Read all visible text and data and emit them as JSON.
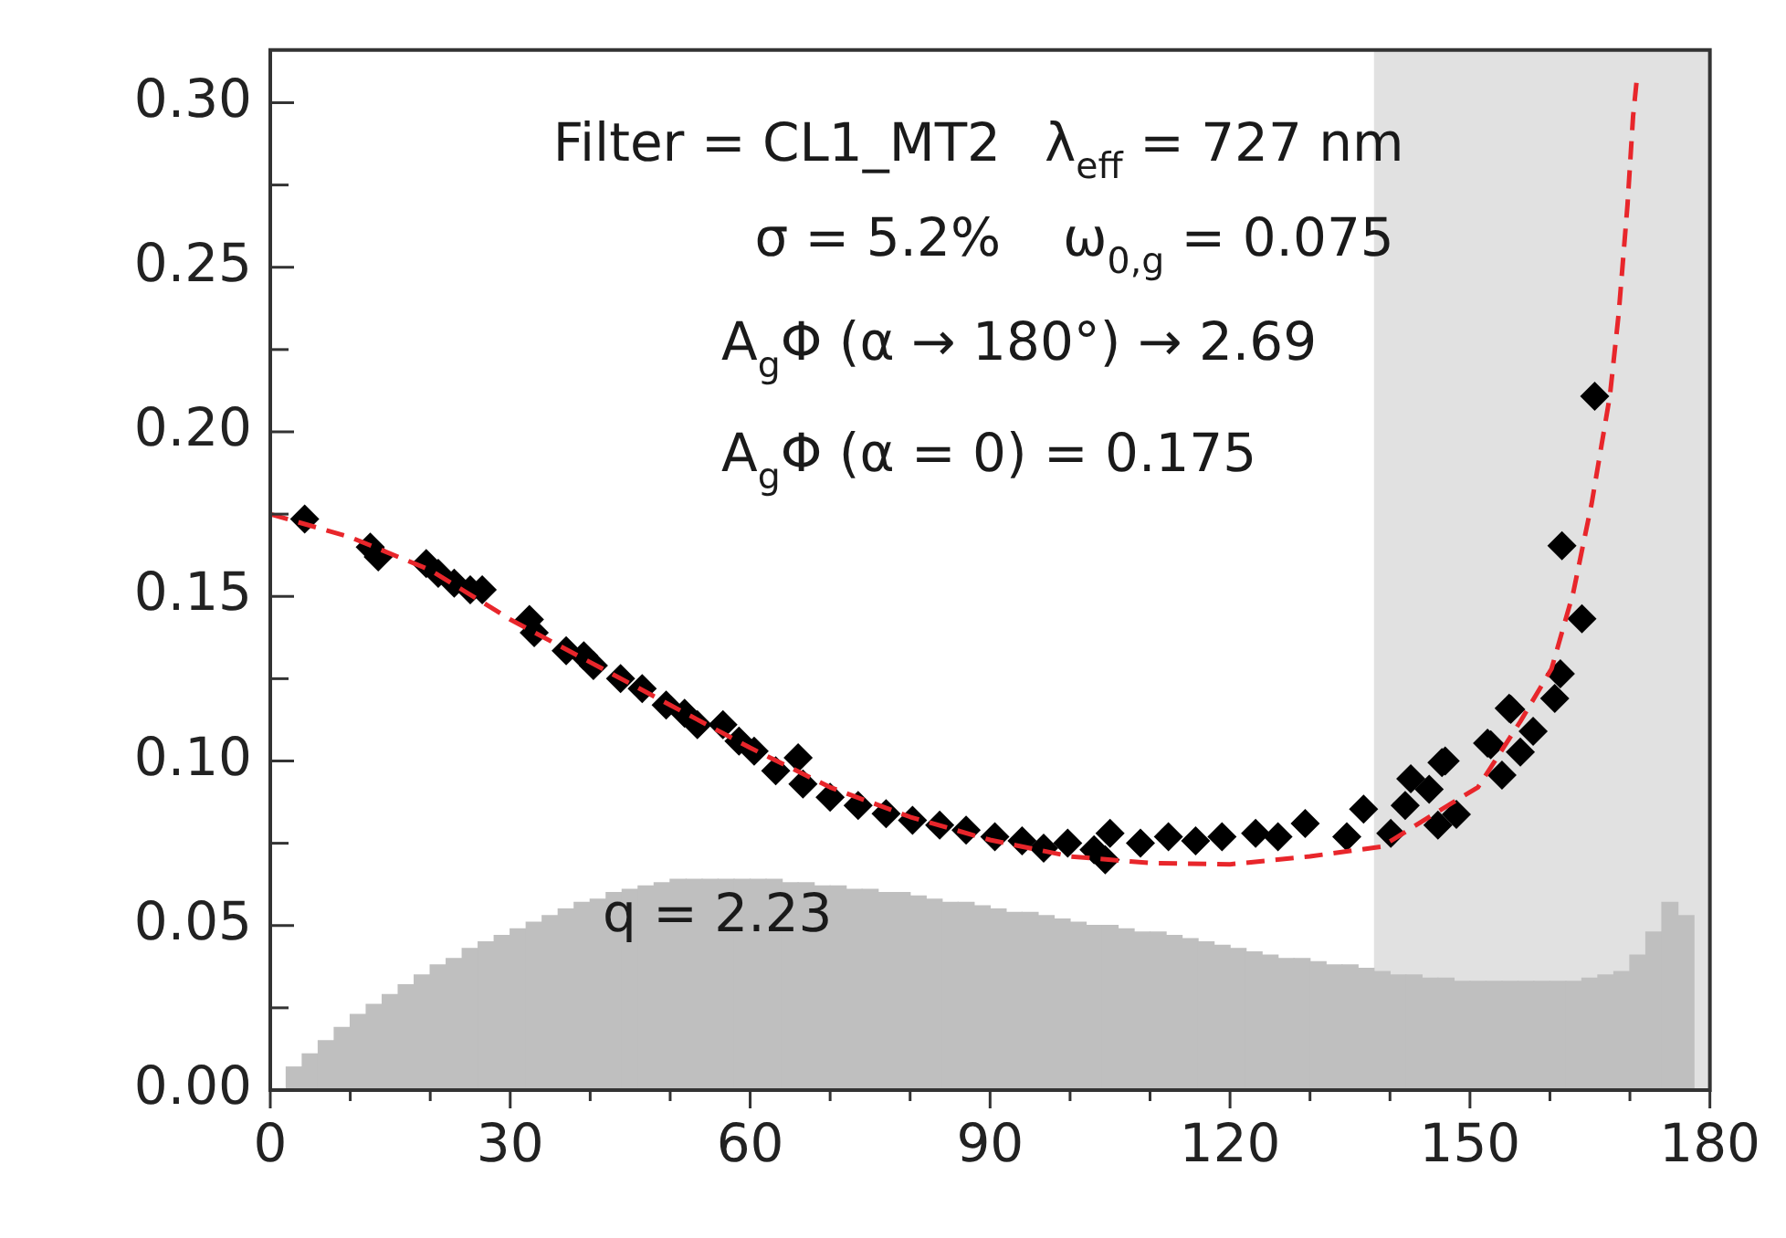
{
  "chart_data": {
    "type": "scatter",
    "annotations": [
      "Filter = CL1_MT2",
      "λ$_{eff}$ = 727 nm",
      "σ = 5.2%",
      "ω$_{0,g}$ = 0.075",
      "A$_{g}$Φ (α → 180°) → 2.69",
      "A$_{g}$Φ (α = 0) = 0.175",
      "q = 2.23"
    ],
    "xlim": [
      0,
      180
    ],
    "ylim": [
      0,
      0.316
    ],
    "xticks": [
      0,
      {
        "value": 10,
        "label": null
      },
      {
        "value": 20,
        "label": null
      },
      30,
      {
        "value": 40,
        "label": null
      },
      {
        "value": 50,
        "label": null
      },
      60,
      {
        "value": 70,
        "label": null
      },
      {
        "value": 80,
        "label": null
      },
      90,
      {
        "value": 100,
        "label": null
      },
      {
        "value": 110,
        "label": null
      },
      120,
      {
        "value": 130,
        "label": null
      },
      {
        "value": 140,
        "label": null
      },
      150,
      {
        "value": 160,
        "label": null
      },
      {
        "value": 170,
        "label": null
      },
      180
    ],
    "yticks": [
      {
        "value": 0,
        "label": "0.00"
      },
      {
        "value": 0.025,
        "label": null
      },
      {
        "value": 0.05,
        "label": "0.05"
      },
      {
        "value": 0.075,
        "label": null
      },
      {
        "value": 0.1,
        "label": "0.10"
      },
      {
        "value": 0.125,
        "label": null
      },
      {
        "value": 0.15,
        "label": "0.15"
      },
      {
        "value": 0.175,
        "label": null
      },
      {
        "value": 0.2,
        "label": "0.20"
      },
      {
        "value": 0.225,
        "label": null
      },
      {
        "value": 0.25,
        "label": "0.25"
      },
      {
        "value": 0.275,
        "label": null
      },
      {
        "value": 0.3,
        "label": "0.30"
      }
    ],
    "grid": false,
    "legend": false,
    "bands": [
      {
        "axis": "x",
        "from": 138,
        "to": 180,
        "color": "#adadad"
      }
    ],
    "series": [
      {
        "type": "histogram",
        "color": "#bfbfbf",
        "bins": [
          2,
          4,
          6,
          8,
          10,
          12,
          14,
          16,
          18,
          20,
          22,
          24,
          26,
          28,
          30,
          32,
          34,
          36,
          38,
          40,
          42,
          44,
          46,
          48,
          50,
          52,
          54,
          56,
          58,
          60,
          62,
          64,
          66,
          68,
          70,
          72,
          74,
          76,
          78,
          80,
          82,
          84,
          86,
          88,
          90,
          92,
          94,
          96,
          98,
          100,
          102,
          104,
          106,
          108,
          110,
          112,
          114,
          116,
          118,
          120,
          122,
          124,
          126,
          128,
          130,
          132,
          134,
          136,
          138,
          140,
          142,
          144,
          146,
          148,
          150,
          152,
          154,
          156,
          158,
          160,
          162,
          164,
          166,
          168,
          170,
          172,
          174,
          176,
          178
        ],
        "values": [
          0.007,
          0.011,
          0.015,
          0.019,
          0.023,
          0.026,
          0.029,
          0.032,
          0.035,
          0.038,
          0.04,
          0.043,
          0.045,
          0.047,
          0.049,
          0.051,
          0.053,
          0.055,
          0.057,
          0.058,
          0.06,
          0.061,
          0.062,
          0.063,
          0.064,
          0.064,
          0.064,
          0.064,
          0.064,
          0.064,
          0.064,
          0.063,
          0.063,
          0.062,
          0.062,
          0.061,
          0.061,
          0.06,
          0.06,
          0.059,
          0.058,
          0.057,
          0.057,
          0.056,
          0.055,
          0.054,
          0.054,
          0.053,
          0.052,
          0.051,
          0.05,
          0.05,
          0.049,
          0.048,
          0.048,
          0.047,
          0.046,
          0.045,
          0.044,
          0.043,
          0.042,
          0.041,
          0.04,
          0.04,
          0.039,
          0.038,
          0.038,
          0.037,
          0.036,
          0.035,
          0.035,
          0.034,
          0.034,
          0.033,
          0.033,
          0.033,
          0.033,
          0.033,
          0.033,
          0.033,
          0.033,
          0.034,
          0.035,
          0.036,
          0.041,
          0.048,
          0.057,
          0.053
        ]
      },
      {
        "type": "scatter",
        "color": "#000000",
        "marker": "diamond",
        "x": [
          4.3,
          12.5,
          13.5,
          19.5,
          21,
          23,
          25,
          26.5,
          32.4,
          33,
          37,
          39.2,
          40.4,
          43.8,
          46.5,
          49.5,
          51.8,
          53.4,
          56.6,
          58.6,
          60.5,
          66,
          63.2,
          66.6,
          70,
          73.5,
          77,
          80.3,
          83.7,
          87,
          90.6,
          94,
          96.7,
          99.7,
          103,
          105,
          104.4,
          108.8,
          112.3,
          115.7,
          119,
          123.2,
          126,
          129.4,
          136.7,
          134.6,
          140.1,
          142.6,
          141.9,
          144.9,
          146.9,
          146,
          148.3,
          152.2,
          154.9,
          154,
          156.3,
          157.9,
          160.6,
          161.3,
          165.6,
          161.5,
          164,
          155.1,
          152.6,
          146.5
        ],
        "values": [
          0.1735,
          0.165,
          0.162,
          0.16,
          0.157,
          0.154,
          0.152,
          0.152,
          0.143,
          0.139,
          0.1335,
          0.132,
          0.129,
          0.125,
          0.122,
          0.117,
          0.1145,
          0.111,
          0.111,
          0.106,
          0.103,
          0.101,
          0.097,
          0.093,
          0.089,
          0.0865,
          0.084,
          0.082,
          0.0805,
          0.079,
          0.077,
          0.0757,
          0.0735,
          0.075,
          0.073,
          0.078,
          0.07,
          0.075,
          0.077,
          0.0757,
          0.077,
          0.078,
          0.077,
          0.081,
          0.0854,
          0.077,
          0.078,
          0.0946,
          0.0865,
          0.0914,
          0.1,
          0.0805,
          0.0838,
          0.1054,
          0.116,
          0.0957,
          0.1027,
          0.109,
          0.119,
          0.1265,
          0.2108,
          0.1654,
          0.1432,
          0.1157,
          0.1049,
          0.0995
        ]
      },
      {
        "type": "line",
        "color": "#e8262b",
        "line_style": "dashed",
        "marker": "none",
        "x": [
          0,
          10,
          20,
          30,
          40,
          50,
          60,
          70,
          80,
          90,
          100,
          110,
          120,
          130,
          139,
          144.9,
          151,
          156.3,
          160.2,
          162.9,
          165.2,
          167.5,
          168.6,
          169.7,
          170.4,
          170.9
        ],
        "values": [
          0.175,
          0.168,
          0.158,
          0.143,
          0.13,
          0.117,
          0.104,
          0.092,
          0.083,
          0.076,
          0.071,
          0.069,
          0.0686,
          0.071,
          0.074,
          0.083,
          0.092,
          0.112,
          0.128,
          0.151,
          0.178,
          0.211,
          0.236,
          0.269,
          0.296,
          0.308
        ]
      }
    ]
  }
}
